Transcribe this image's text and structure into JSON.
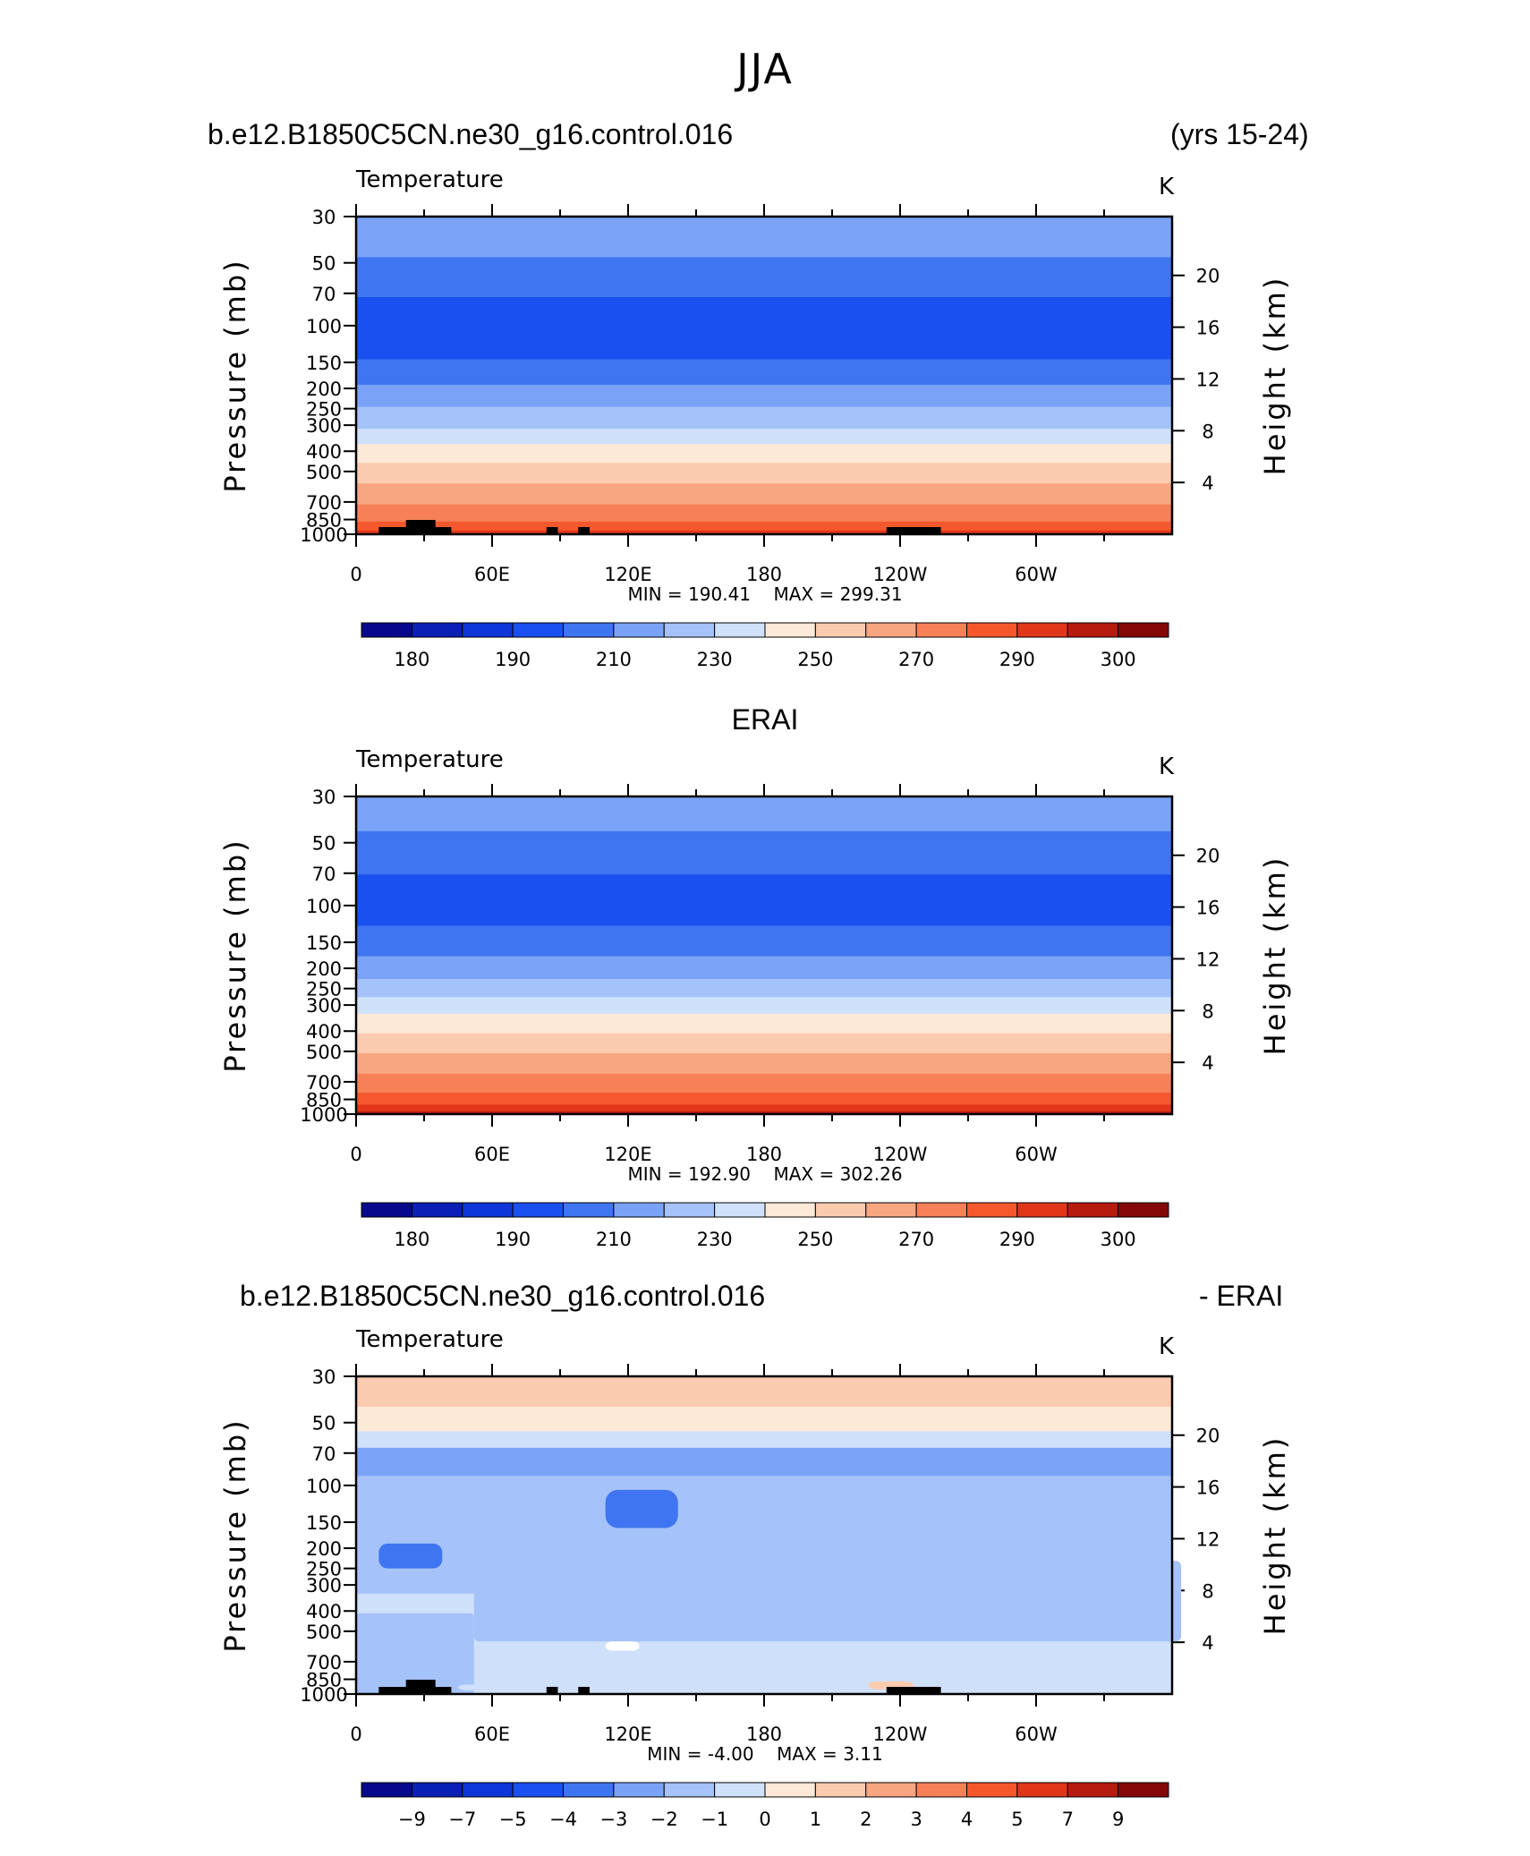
{
  "figure": {
    "title": "JJA",
    "header_left": "b.e12.B1850C5CN.ne30_g16.control.016",
    "header_right": "(yrs 15-24)",
    "erai_header": "ERAI",
    "diff_header_left": "b.e12.B1850C5CN.ne30_g16.control.016",
    "diff_header_right": "- ERAI"
  },
  "colors": {
    "palette_abs": [
      "#08088c",
      "#0a1fb4",
      "#0e36d8",
      "#1a50f0",
      "#3f75f0",
      "#7aa3f7",
      "#a5c2f9",
      "#cfe0fb",
      "#fde9d8",
      "#fbcbb0",
      "#f8a682",
      "#f68158",
      "#f4582c",
      "#e13619",
      "#b61b0f",
      "#850808"
    ],
    "terrain": "#000000"
  },
  "chart_data": [
    {
      "type": "heatmap",
      "panel": "model",
      "title": "Temperature",
      "units": "K",
      "xlabel": "",
      "ylabel": "Pressure (mb)",
      "ylabel_right": "Height (km)",
      "x_ticks": [
        "0",
        "60E",
        "120E",
        "180",
        "120W",
        "60W"
      ],
      "x_range": [
        0,
        360
      ],
      "y_ticks": [
        "30",
        "50",
        "70",
        "100",
        "150",
        "200",
        "250",
        "300",
        "400",
        "500",
        "700",
        "850",
        "1000"
      ],
      "y_range_mb": [
        30,
        1000
      ],
      "height_ticks_km": [
        "20",
        "16",
        "12",
        "8",
        "4"
      ],
      "min": "190.41",
      "max": "299.31",
      "min_label": "MIN =",
      "max_label": "MAX =",
      "colorbar_labels": [
        "180",
        "190",
        "210",
        "230",
        "250",
        "270",
        "290",
        "300"
      ],
      "layers": [
        {
          "p_top": 30,
          "p_bottom": 47,
          "class": 5
        },
        {
          "p_top": 47,
          "p_bottom": 73,
          "class": 4
        },
        {
          "p_top": 73,
          "p_bottom": 145,
          "class": 3
        },
        {
          "p_top": 145,
          "p_bottom": 192,
          "class": 4
        },
        {
          "p_top": 192,
          "p_bottom": 245,
          "class": 5
        },
        {
          "p_top": 245,
          "p_bottom": 312,
          "class": 6
        },
        {
          "p_top": 312,
          "p_bottom": 370,
          "class": 7
        },
        {
          "p_top": 370,
          "p_bottom": 455,
          "class": 8
        },
        {
          "p_top": 455,
          "p_bottom": 570,
          "class": 9
        },
        {
          "p_top": 570,
          "p_bottom": 720,
          "class": 10
        },
        {
          "p_top": 720,
          "p_bottom": 870,
          "class": 11
        },
        {
          "p_top": 870,
          "p_bottom": 960,
          "class": 12
        },
        {
          "p_top": 960,
          "p_bottom": 1000,
          "class": 13
        }
      ],
      "terrain_lon": [
        [
          10,
          42
        ],
        [
          22,
          35
        ],
        [
          84,
          89
        ],
        [
          98,
          103
        ],
        [
          234,
          258
        ]
      ]
    },
    {
      "type": "heatmap",
      "panel": "obs",
      "title": "Temperature",
      "units": "K",
      "xlabel": "",
      "ylabel": "Pressure (mb)",
      "ylabel_right": "Height (km)",
      "x_ticks": [
        "0",
        "60E",
        "120E",
        "180",
        "120W",
        "60W"
      ],
      "x_range": [
        0,
        360
      ],
      "y_ticks": [
        "30",
        "50",
        "70",
        "100",
        "150",
        "200",
        "250",
        "300",
        "400",
        "500",
        "700",
        "850",
        "1000"
      ],
      "y_range_mb": [
        30,
        1000
      ],
      "height_ticks_km": [
        "20",
        "16",
        "12",
        "8",
        "4"
      ],
      "min": "192.90",
      "max": "302.26",
      "min_label": "MIN =",
      "max_label": "MAX =",
      "colorbar_labels": [
        "180",
        "190",
        "210",
        "230",
        "250",
        "270",
        "290",
        "300"
      ],
      "layers": [
        {
          "p_top": 30,
          "p_bottom": 44,
          "class": 5
        },
        {
          "p_top": 44,
          "p_bottom": 71,
          "class": 4
        },
        {
          "p_top": 71,
          "p_bottom": 125,
          "class": 3
        },
        {
          "p_top": 125,
          "p_bottom": 175,
          "class": 4
        },
        {
          "p_top": 175,
          "p_bottom": 225,
          "class": 5
        },
        {
          "p_top": 225,
          "p_bottom": 275,
          "class": 6
        },
        {
          "p_top": 275,
          "p_bottom": 330,
          "class": 7
        },
        {
          "p_top": 330,
          "p_bottom": 410,
          "class": 8
        },
        {
          "p_top": 410,
          "p_bottom": 510,
          "class": 9
        },
        {
          "p_top": 510,
          "p_bottom": 640,
          "class": 10
        },
        {
          "p_top": 640,
          "p_bottom": 790,
          "class": 11
        },
        {
          "p_top": 790,
          "p_bottom": 900,
          "class": 12
        },
        {
          "p_top": 900,
          "p_bottom": 970,
          "class": 13
        },
        {
          "p_top": 970,
          "p_bottom": 1000,
          "class": 14
        }
      ],
      "terrain_lon": []
    },
    {
      "type": "heatmap",
      "panel": "difference",
      "title": "Temperature",
      "units": "K",
      "xlabel": "",
      "ylabel": "Pressure (mb)",
      "ylabel_right": "Height (km)",
      "x_ticks": [
        "0",
        "60E",
        "120E",
        "180",
        "120W",
        "60W"
      ],
      "x_range": [
        0,
        360
      ],
      "y_ticks": [
        "30",
        "50",
        "70",
        "100",
        "150",
        "200",
        "250",
        "300",
        "400",
        "500",
        "700",
        "850",
        "1000"
      ],
      "y_range_mb": [
        30,
        1000
      ],
      "height_ticks_km": [
        "20",
        "16",
        "12",
        "8",
        "4"
      ],
      "min": "-4.00",
      "max": "3.11",
      "min_label": "MIN =",
      "max_label": "MAX =",
      "colorbar_labels": [
        "-9",
        "-7",
        "-5",
        "-4",
        "-3",
        "-2",
        "-1",
        "0",
        "1",
        "2",
        "3",
        "4",
        "5",
        "7",
        "9"
      ],
      "layers": [
        {
          "p_top": 30,
          "p_bottom": 42,
          "class": 8
        },
        {
          "p_top": 42,
          "p_bottom": 55,
          "class": 7
        },
        {
          "p_top": 55,
          "p_bottom": 66,
          "class": 6
        },
        {
          "p_top": 66,
          "p_bottom": 90,
          "class": 4
        },
        {
          "p_top": 90,
          "p_bottom": 330,
          "class": 5
        },
        {
          "p_top": 330,
          "p_bottom": 1000,
          "class": 6
        }
      ],
      "terrain_lon": [
        [
          10,
          42
        ],
        [
          22,
          35
        ],
        [
          84,
          89
        ],
        [
          98,
          103
        ],
        [
          234,
          258
        ]
      ]
    }
  ]
}
